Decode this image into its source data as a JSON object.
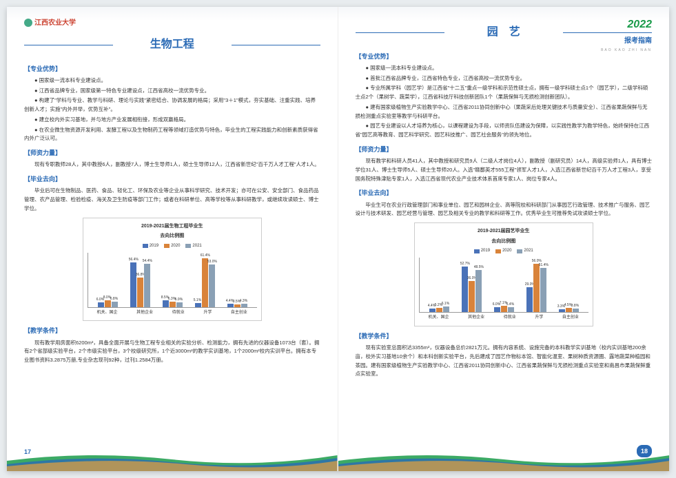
{
  "header": {
    "logo_text": "江西农业大学",
    "year": "2022",
    "guide_title": "报考指南",
    "pinyin": "BAO KAO ZHI NAN"
  },
  "colors": {
    "brand_blue": "#2a6ab5",
    "brand_green": "#1a9b4a",
    "brand_red": "#c43030",
    "wave_orange": "#e8a13a",
    "bar_2019": "#4a72b8",
    "bar_2020": "#d9833a",
    "bar_2021": "#8aa0b5"
  },
  "left": {
    "title": "生物工程",
    "sections": {
      "advantage": {
        "head": "【专业优势】",
        "bullets": [
          "● 国家级一流本科专业建设点。",
          "● 江西省品牌专业，国家级第一特色专业建设点，江西省高校一流优势专业。",
          "● 构建了\"学科与专业、教学与科研、理论与实践\"紧密结合、协调发展的格局；采用\"3＋1\"模式，夯实基础、注重实践、培养创新人才；实施\"内外并举，优势互补\"。",
          "● 建立校内外实习基地，并与地方产业发展相衔接，形成双赢格局。",
          "● 在农业微生物资源开发利用、发酵工程以及生物制药工程等领域打造优势与特色，毕业生的工程实践能力和创新素质获得省内外广泛认可。"
        ]
      },
      "faculty": {
        "head": "【师资力量】",
        "text": "现有专职教师28人，其中教授6人，副教授7人，博士生导师1人，硕士生导师12人，江西省新世纪\"百千万人才工程\"人才1人。"
      },
      "graduate": {
        "head": "【毕业去向】",
        "text": "毕业后可在生物制品、医药、食品、轻化工、环保及农业等企业从事科学研究、技术开发；亦可在公安、安全部门、食品药品管理、农产品管理、检验检疫、海关及卫生防疫等部门工作；或者在科研单位、高等学校等从事科研教学，或继续攻读硕士、博士学位。"
      },
      "teaching": {
        "head": "【教学条件】",
        "text": "现有教学用房面积6200m²，具备全面开展与生物工程专业相关的实验分析、检测能力，拥有先进的仪器设备1073台（套）。拥有2个省部级实验平台，2个市级实验平台，3个校级研究所，1个近3000m²的教学实训基地，1个2000m²校内实训平台。拥有本专业图书资料3.2875万册,专业杂志现刊92种，过刊1.2584万册。"
      }
    },
    "chart": {
      "title": "2019-2021届生物工程毕业生",
      "subtitle": "去向比例图",
      "legend": [
        "2019",
        "2020",
        "2021"
      ],
      "categories": [
        "机关、国企",
        "其他企业",
        "待就业",
        "升学",
        "自主创业"
      ],
      "series": {
        "2019": [
          6.0,
          56.4,
          8.5,
          5.1,
          4.4
        ],
        "2020": [
          8.0,
          36.8,
          6.3,
          61.4,
          3.5
        ],
        "2021": [
          6.8,
          54.4,
          5.9,
          53.0,
          4.3
        ]
      },
      "ymax": 65
    },
    "page_no": "17"
  },
  "right": {
    "title": "园　艺",
    "sections": {
      "advantage": {
        "head": "【专业优势】",
        "bullets": [
          "● 国家级一流本科专业建设点。",
          "● 首批江西省品牌专业，江西省特色专业，江西省高校一流优势专业。",
          "● 专业所属学科（园艺学）是江西省\"十二五\"重点一级学科和示范性硕士点，拥有一级学科硕士点1个（园艺学），二级学科硕士点2个（果树学、蔬菜学），江西省科技厅科技创新团队1个（果蔬保鲜与无损检测创新团队）。",
          "● 建有国家级植物生产实验教学中心、江西省2011协同创新中心（果蔬采后处理关键技术与质量安全）、江西省果蔬保鲜与无损检测重点实验室等教学与科研平台。",
          "● 园艺专业建设以人才培养为核心，以课程建设为手段，以师资队伍建设为保障，以实践性教学为教学特色，始终保持在江西省\"园艺高等教育、园艺科学研究、园艺科技推广、园艺社会服务\"的领先地位。"
        ]
      },
      "faculty": {
        "head": "【师资力量】",
        "text": "现有教学和科研人员41人，其中教授和研究员9人（二级人才岗位4人），副教授（副研究员）14人，高级实验师1人，具有博士学位31人、博士生导师5人、硕士生导师20人。入选\"赣鄱英才555工程\"领军人才1人，入选江西省新世纪百千万人才工程3人，享受国务院特殊津贴专家1人，入选江西省现代农业产业技术体系首席专家1人、岗位专家4人。"
      },
      "graduate": {
        "head": "【毕业去向】",
        "text": "毕业生可在农业行政管理部门和事业单位、园艺和园林企业、高等院校和科研部门从事园艺行政管理、技术推广与服务、园艺设计与技术研发、园艺经营与管理、园艺及相关专业的教学和科研等工作。优秀毕业生可推荐免试攻读硕士学位。"
      },
      "teaching": {
        "head": "【教学条件】",
        "text": "现有实验室总面积达3355m²，仪器设备总价2821万元。拥有内容系统、设施完备的本科教学实训基地（校内实训基地200余亩，校外实习基地10余个）和本科创新实验平台，先后建成了园艺作物标本馆、智能化温室、果树种质资源圃、露地蔬菜种植园和茶园。建有国家级植物生产实验教学中心、江西省2011协同创新中心、江西省果蔬保鲜与无损检测重点实验室和南昌市果蔬保鲜重点实验室。"
      }
    },
    "chart": {
      "title": "2019-2021届园艺毕业生",
      "subtitle": "去向比例图",
      "legend": [
        "2019",
        "2020",
        "2021"
      ],
      "categories": [
        "机关、国企",
        "其他企业",
        "待就业",
        "升学",
        "自主创业"
      ],
      "series": {
        "2019": [
          4.4,
          52.7,
          6.0,
          29.0,
          3.3
        ],
        "2020": [
          5.2,
          36.0,
          7.1,
          56.0,
          4.5
        ],
        "2021": [
          6.1,
          48.5,
          5.4,
          51.4,
          3.8
        ]
      },
      "ymax": 60
    },
    "page_no": "18"
  }
}
